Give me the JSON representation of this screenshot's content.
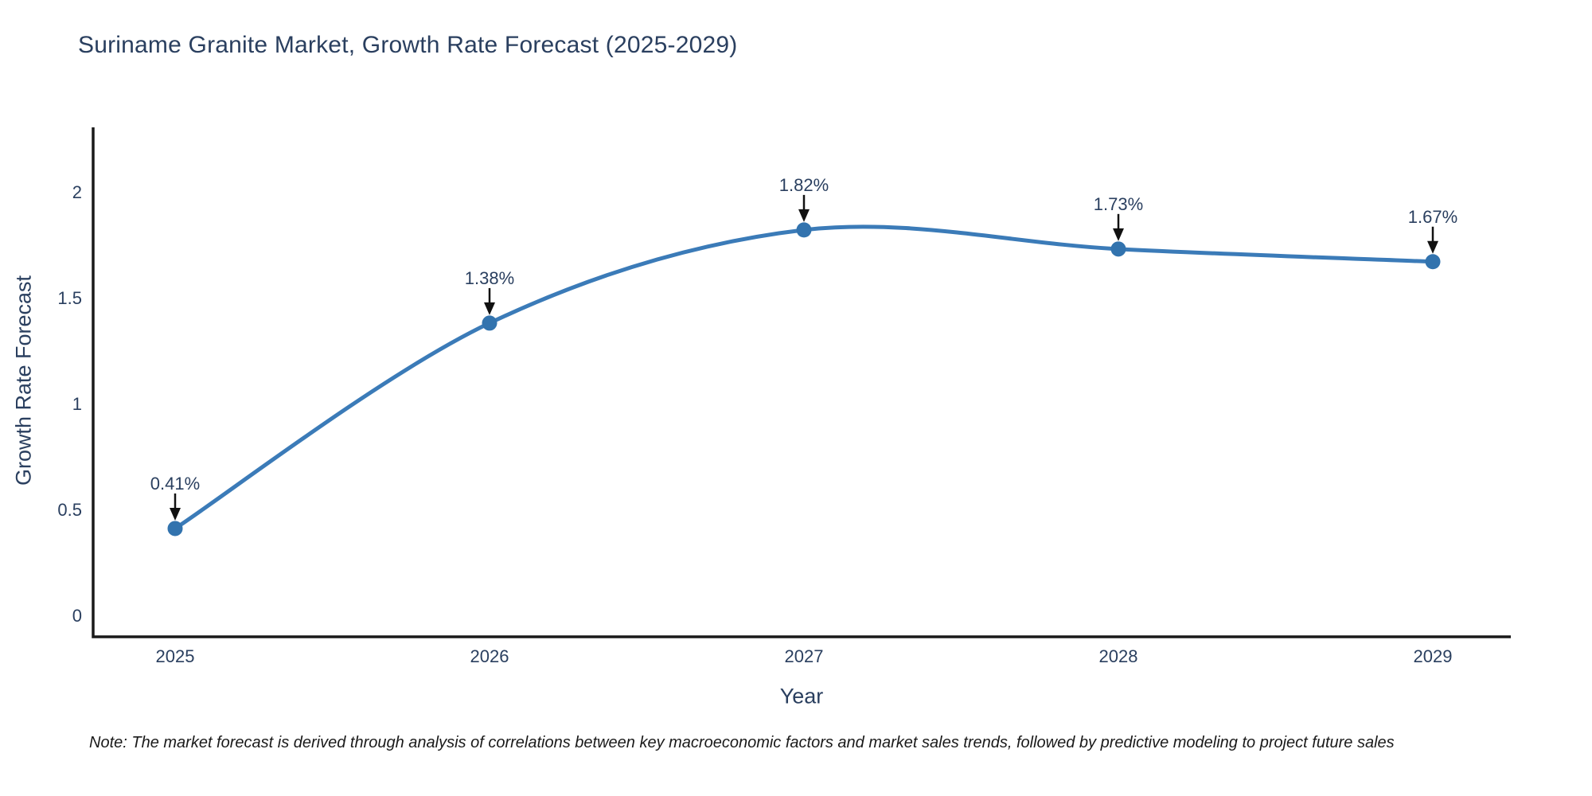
{
  "chart_data": {
    "type": "line",
    "title": "Suriname Granite Market, Growth Rate Forecast (2025-2029)",
    "xlabel": "Year",
    "ylabel": "Growth Rate Forecast",
    "categories": [
      "2025",
      "2026",
      "2027",
      "2028",
      "2029"
    ],
    "series": [
      {
        "name": "Growth Rate Forecast",
        "values": [
          0.41,
          1.38,
          1.82,
          1.73,
          1.67
        ]
      }
    ],
    "point_labels": [
      "0.41%",
      "1.38%",
      "1.82%",
      "1.73%",
      "1.67%"
    ],
    "y_ticks": [
      0,
      0.5,
      1,
      1.5,
      2
    ],
    "ylim": [
      -0.1,
      2.3
    ],
    "grid": false,
    "legend": false,
    "line_shape": "spline",
    "colors": {
      "line": "#3b7bb8",
      "marker": "#3273ae",
      "text": "#2a3f5f",
      "axis": "#1a1a1a",
      "arrow": "#111111",
      "note_text": "#1a1a1a",
      "background": "#ffffff"
    }
  },
  "note": {
    "text": "Note: The market forecast is derived through analysis of correlations between key macroeconomic factors and market sales trends, followed by predictive modeling to project future sales"
  }
}
